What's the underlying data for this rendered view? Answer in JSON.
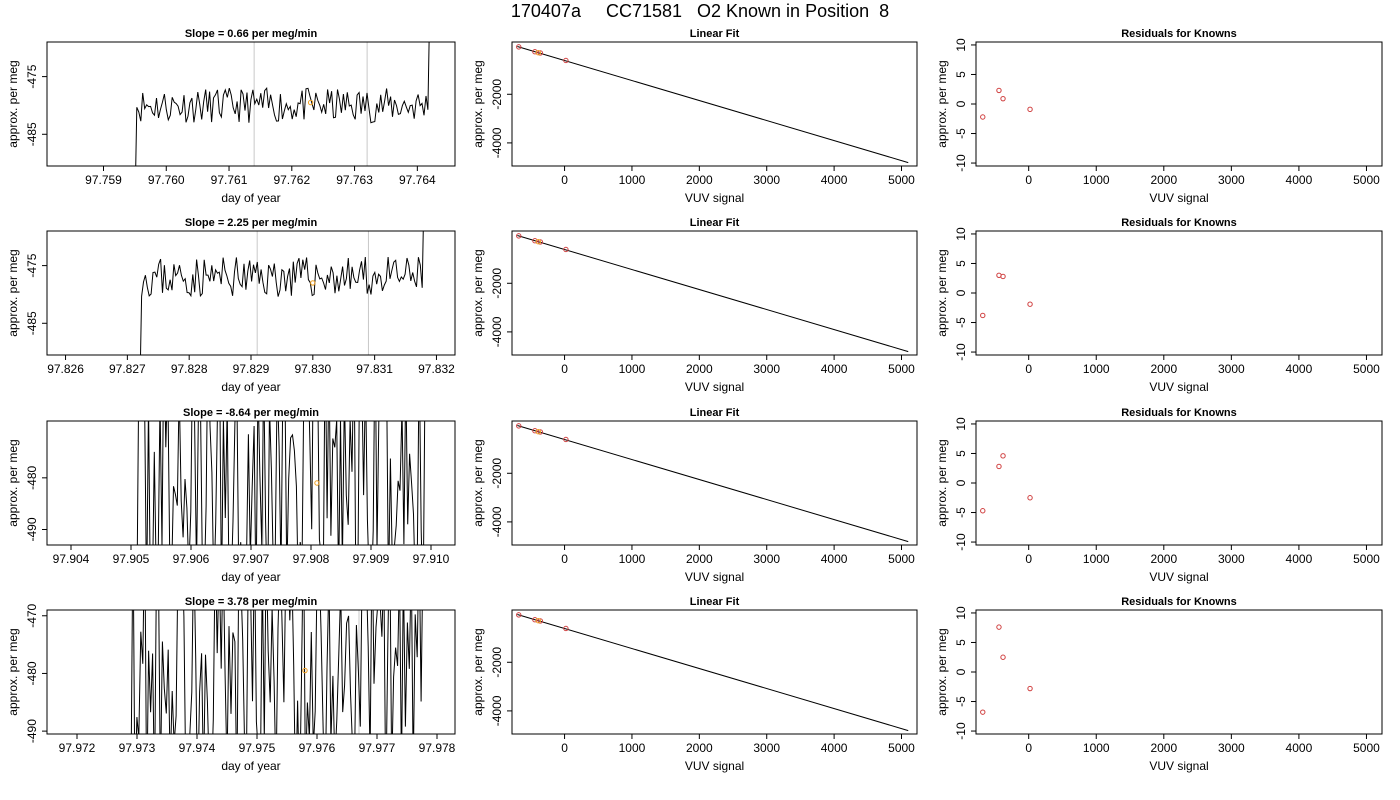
{
  "figure_title": "170407a     CC71581   O2 Known in Position  8",
  "chart_data": [
    {
      "type": "line",
      "title": "Slope =  0.66  per meg/min",
      "xlabel": "day of year",
      "ylabel": "approx. per meg",
      "xlim": [
        97.7581,
        97.7646
      ],
      "ylim": [
        -490.5,
        -469.0
      ],
      "xticks": [
        "97.759",
        "97.760",
        "97.761",
        "97.762",
        "97.763",
        "97.764"
      ],
      "xtick_values": [
        97.759,
        97.76,
        97.761,
        97.762,
        97.763,
        97.764
      ],
      "yticks": [
        "-475",
        "-485"
      ],
      "ytick_values": [
        -475,
        -485
      ],
      "vlines": [
        97.7614,
        97.7632
      ],
      "x_start": 97.7595,
      "x_end": 97.7642,
      "noise_amplitude": 3,
      "noise_base": -480,
      "ref_point": {
        "x": 97.7623,
        "y": -479.5
      },
      "seed": 11
    },
    {
      "type": "line",
      "title": "Slope =  2.25  per meg/min",
      "xlabel": "day of year",
      "ylabel": "approx. per meg",
      "xlim": [
        97.8257,
        97.8323
      ],
      "ylim": [
        -490.5,
        -469.0
      ],
      "xticks": [
        "97.826",
        "97.827",
        "97.828",
        "97.829",
        "97.830",
        "97.831",
        "97.832"
      ],
      "xtick_values": [
        97.826,
        97.827,
        97.828,
        97.829,
        97.83,
        97.831,
        97.832
      ],
      "yticks": [
        "-475",
        "-485"
      ],
      "ytick_values": [
        -475,
        -485
      ],
      "vlines": [
        97.8291,
        97.8309
      ],
      "x_start": 97.8272,
      "x_end": 97.8318,
      "noise_amplitude": 3.5,
      "noise_base": -477,
      "ref_point": {
        "x": 97.83,
        "y": -478.0
      },
      "seed": 23
    },
    {
      "type": "line",
      "title": "Slope =  -8.64  per meg/min",
      "xlabel": "day of year",
      "ylabel": "approx. per meg",
      "xlim": [
        97.9036,
        97.9104
      ],
      "ylim": [
        -493.0,
        -469.0
      ],
      "xticks": [
        "97.904",
        "97.905",
        "97.906",
        "97.907",
        "97.908",
        "97.909",
        "97.910"
      ],
      "xtick_values": [
        97.904,
        97.905,
        97.906,
        97.907,
        97.908,
        97.909,
        97.91
      ],
      "yticks": [
        "-480",
        "-490"
      ],
      "ytick_values": [
        -480,
        -490
      ],
      "vlines": [
        97.9072
      ],
      "x_start": 97.9051,
      "x_end": 97.9099,
      "noise_amplitude": 30,
      "noise_base": -480,
      "ref_point": {
        "x": 97.9081,
        "y": -481.0
      },
      "seed": 37
    },
    {
      "type": "line",
      "title": "Slope =  3.78  per meg/min",
      "xlabel": "day of year",
      "ylabel": "approx. per meg",
      "xlim": [
        97.9715,
        97.9783
      ],
      "ylim": [
        -490.5,
        -469.0
      ],
      "xticks": [
        "97.972",
        "97.973",
        "97.974",
        "97.975",
        "97.976",
        "97.977",
        "97.978"
      ],
      "xtick_values": [
        97.972,
        97.973,
        97.974,
        97.975,
        97.976,
        97.977,
        97.978
      ],
      "yticks": [
        "-470",
        "-480",
        "-490"
      ],
      "ytick_values": [
        -470,
        -480,
        -490
      ],
      "vlines": [
        97.9767
      ],
      "x_start": 97.9729,
      "x_end": 97.9778,
      "noise_amplitude": 25,
      "noise_base": -478,
      "ref_point": {
        "x": 97.9758,
        "y": -479.5
      },
      "seed": 53
    },
    {
      "type": "scatter",
      "title": "Linear Fit",
      "xlabel": "VUV signal",
      "ylabel": "approx. per meg",
      "xlim": [
        -780,
        5230
      ],
      "ylim": [
        -4950,
        150
      ],
      "xticks": [
        "0",
        "1000",
        "2000",
        "3000",
        "4000",
        "5000"
      ],
      "xtick_values": [
        0,
        1000,
        2000,
        3000,
        4000,
        5000
      ],
      "yticks": [
        "-2000",
        "-4000"
      ],
      "ytick_values": [
        -2000,
        -4000
      ],
      "fit_line": [
        [
          -700,
          -35
        ],
        [
          5100,
          -4810
        ]
      ],
      "points": [
        {
          "x": -680,
          "y": -50,
          "color": "#d04040"
        },
        {
          "x": -440,
          "y": -250,
          "color": "#d04040"
        },
        {
          "x": -360,
          "y": -300,
          "color": "#d04040"
        },
        {
          "x": 20,
          "y": -610,
          "color": "#d04040"
        }
      ],
      "ref_points": [
        {
          "x": -390,
          "y": -290,
          "color": "#f0a020"
        }
      ]
    },
    {
      "type": "scatter",
      "title": "Linear Fit",
      "xlabel": "VUV signal",
      "ylabel": "approx. per meg",
      "xlim": [
        -780,
        5230
      ],
      "ylim": [
        -4950,
        150
      ],
      "xticks": [
        "0",
        "1000",
        "2000",
        "3000",
        "4000",
        "5000"
      ],
      "xtick_values": [
        0,
        1000,
        2000,
        3000,
        4000,
        5000
      ],
      "yticks": [
        "-2000",
        "-4000"
      ],
      "ytick_values": [
        -2000,
        -4000
      ],
      "fit_line": [
        [
          -700,
          -35
        ],
        [
          5100,
          -4810
        ]
      ],
      "points": [
        {
          "x": -680,
          "y": -50,
          "color": "#d04040"
        },
        {
          "x": -440,
          "y": -250,
          "color": "#d04040"
        },
        {
          "x": -360,
          "y": -300,
          "color": "#d04040"
        },
        {
          "x": 20,
          "y": -610,
          "color": "#d04040"
        }
      ],
      "ref_points": [
        {
          "x": -390,
          "y": -290,
          "color": "#f0a020"
        }
      ]
    },
    {
      "type": "scatter",
      "title": "Linear Fit",
      "xlabel": "VUV signal",
      "ylabel": "approx. per meg",
      "xlim": [
        -780,
        5230
      ],
      "ylim": [
        -4950,
        150
      ],
      "xticks": [
        "0",
        "1000",
        "2000",
        "3000",
        "4000",
        "5000"
      ],
      "xtick_values": [
        0,
        1000,
        2000,
        3000,
        4000,
        5000
      ],
      "yticks": [
        "-2000",
        "-4000"
      ],
      "ytick_values": [
        -2000,
        -4000
      ],
      "fit_line": [
        [
          -700,
          -35
        ],
        [
          5100,
          -4810
        ]
      ],
      "points": [
        {
          "x": -680,
          "y": -50,
          "color": "#d04040"
        },
        {
          "x": -440,
          "y": -250,
          "color": "#d04040"
        },
        {
          "x": -360,
          "y": -300,
          "color": "#d04040"
        },
        {
          "x": 20,
          "y": -610,
          "color": "#d04040"
        }
      ],
      "ref_points": [
        {
          "x": -390,
          "y": -290,
          "color": "#f0a020"
        }
      ]
    },
    {
      "type": "scatter",
      "title": "Linear Fit",
      "xlabel": "VUV signal",
      "ylabel": "approx. per meg",
      "xlim": [
        -780,
        5230
      ],
      "ylim": [
        -4950,
        150
      ],
      "xticks": [
        "0",
        "1000",
        "2000",
        "3000",
        "4000",
        "5000"
      ],
      "xtick_values": [
        0,
        1000,
        2000,
        3000,
        4000,
        5000
      ],
      "yticks": [
        "-2000",
        "-4000"
      ],
      "ytick_values": [
        -2000,
        -4000
      ],
      "fit_line": [
        [
          -700,
          -35
        ],
        [
          5100,
          -4810
        ]
      ],
      "points": [
        {
          "x": -680,
          "y": -50,
          "color": "#d04040"
        },
        {
          "x": -440,
          "y": -250,
          "color": "#d04040"
        },
        {
          "x": -360,
          "y": -300,
          "color": "#d04040"
        },
        {
          "x": 20,
          "y": -610,
          "color": "#d04040"
        }
      ],
      "ref_points": [
        {
          "x": -390,
          "y": -290,
          "color": "#f0a020"
        }
      ]
    },
    {
      "type": "scatter",
      "title": "Residuals for Knowns",
      "xlabel": "VUV signal",
      "ylabel": "approx. per meg",
      "xlim": [
        -780,
        5230
      ],
      "ylim": [
        -10.5,
        10.5
      ],
      "xticks": [
        "0",
        "1000",
        "2000",
        "3000",
        "4000",
        "5000"
      ],
      "xtick_values": [
        0,
        1000,
        2000,
        3000,
        4000,
        5000
      ],
      "yticks": [
        "10",
        "5",
        "0",
        "-5",
        "-10"
      ],
      "ytick_values": [
        10,
        5,
        0,
        -5,
        -10
      ],
      "points": [
        {
          "x": -680,
          "y": -2.2,
          "color": "#d04040"
        },
        {
          "x": -440,
          "y": 2.3,
          "color": "#d04040"
        },
        {
          "x": -380,
          "y": 0.9,
          "color": "#d04040"
        },
        {
          "x": 20,
          "y": -0.9,
          "color": "#d04040"
        }
      ]
    },
    {
      "type": "scatter",
      "title": "Residuals for Knowns",
      "xlabel": "VUV signal",
      "ylabel": "approx. per meg",
      "xlim": [
        -780,
        5230
      ],
      "ylim": [
        -10.5,
        10.5
      ],
      "xticks": [
        "0",
        "1000",
        "2000",
        "3000",
        "4000",
        "5000"
      ],
      "xtick_values": [
        0,
        1000,
        2000,
        3000,
        4000,
        5000
      ],
      "yticks": [
        "10",
        "5",
        "0",
        "-5",
        "-10"
      ],
      "ytick_values": [
        10,
        5,
        0,
        -5,
        -10
      ],
      "points": [
        {
          "x": -680,
          "y": -3.8,
          "color": "#d04040"
        },
        {
          "x": -440,
          "y": 3.0,
          "color": "#d04040"
        },
        {
          "x": -380,
          "y": 2.8,
          "color": "#d04040"
        },
        {
          "x": 20,
          "y": -1.9,
          "color": "#d04040"
        }
      ]
    },
    {
      "type": "scatter",
      "title": "Residuals for Knowns",
      "xlabel": "VUV signal",
      "ylabel": "approx. per meg",
      "xlim": [
        -780,
        5230
      ],
      "ylim": [
        -10.5,
        10.5
      ],
      "xticks": [
        "0",
        "1000",
        "2000",
        "3000",
        "4000",
        "5000"
      ],
      "xtick_values": [
        0,
        1000,
        2000,
        3000,
        4000,
        5000
      ],
      "yticks": [
        "10",
        "5",
        "0",
        "-5",
        "-10"
      ],
      "ytick_values": [
        10,
        5,
        0,
        -5,
        -10
      ],
      "points": [
        {
          "x": -680,
          "y": -4.7,
          "color": "#d04040"
        },
        {
          "x": -440,
          "y": 2.8,
          "color": "#d04040"
        },
        {
          "x": -380,
          "y": 4.6,
          "color": "#d04040"
        },
        {
          "x": 20,
          "y": -2.5,
          "color": "#d04040"
        }
      ]
    },
    {
      "type": "scatter",
      "title": "Residuals for Knowns",
      "xlabel": "VUV signal",
      "ylabel": "approx. per meg",
      "xlim": [
        -780,
        5230
      ],
      "ylim": [
        -10.5,
        10.5
      ],
      "xticks": [
        "0",
        "1000",
        "2000",
        "3000",
        "4000",
        "5000"
      ],
      "xtick_values": [
        0,
        1000,
        2000,
        3000,
        4000,
        5000
      ],
      "yticks": [
        "10",
        "5",
        "0",
        "-5",
        "-10"
      ],
      "ytick_values": [
        10,
        5,
        0,
        -5,
        -10
      ],
      "points": [
        {
          "x": -680,
          "y": -6.8,
          "color": "#d04040"
        },
        {
          "x": -440,
          "y": 7.6,
          "color": "#d04040"
        },
        {
          "x": -380,
          "y": 2.5,
          "color": "#d04040"
        },
        {
          "x": 20,
          "y": -2.8,
          "color": "#d04040"
        }
      ]
    }
  ]
}
